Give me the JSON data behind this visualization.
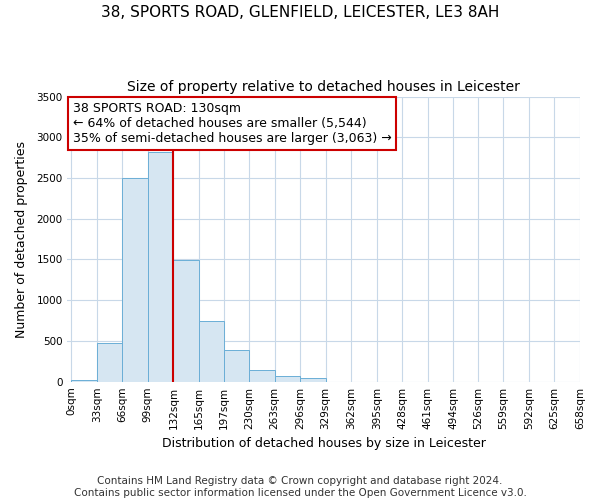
{
  "title_line1": "38, SPORTS ROAD, GLENFIELD, LEICESTER, LE3 8AH",
  "title_line2": "Size of property relative to detached houses in Leicester",
  "xlabel": "Distribution of detached houses by size in Leicester",
  "ylabel": "Number of detached properties",
  "bar_edges": [
    0,
    33,
    66,
    99,
    132,
    165,
    197,
    230,
    263,
    296,
    329,
    362,
    395,
    428,
    461,
    494,
    526,
    559,
    592,
    625,
    658
  ],
  "bar_heights": [
    20,
    480,
    2500,
    2820,
    1490,
    745,
    395,
    145,
    75,
    45,
    0,
    0,
    0,
    0,
    0,
    0,
    0,
    0,
    0,
    0
  ],
  "bar_color": "#d6e6f2",
  "bar_edgecolor": "#6baed6",
  "property_line_x": 132,
  "property_line_color": "#cc0000",
  "ylim": [
    0,
    3500
  ],
  "xlim": [
    -5,
    658
  ],
  "annotation_line1": "38 SPORTS ROAD: 130sqm",
  "annotation_line2": "← 64% of detached houses are smaller (5,544)",
  "annotation_line3": "35% of semi-detached houses are larger (3,063) →",
  "annotation_box_edgecolor": "#cc0000",
  "annotation_box_facecolor": "#ffffff",
  "footer_line1": "Contains HM Land Registry data © Crown copyright and database right 2024.",
  "footer_line2": "Contains public sector information licensed under the Open Government Licence v3.0.",
  "tick_labels": [
    "0sqm",
    "33sqm",
    "66sqm",
    "99sqm",
    "132sqm",
    "165sqm",
    "197sqm",
    "230sqm",
    "263sqm",
    "296sqm",
    "329sqm",
    "362sqm",
    "395sqm",
    "428sqm",
    "461sqm",
    "494sqm",
    "526sqm",
    "559sqm",
    "592sqm",
    "625sqm",
    "658sqm"
  ],
  "ytick_labels": [
    "0",
    "500",
    "1000",
    "1500",
    "2000",
    "2500",
    "3000",
    "3500"
  ],
  "ytick_values": [
    0,
    500,
    1000,
    1500,
    2000,
    2500,
    3000,
    3500
  ],
  "title_fontsize": 11,
  "subtitle_fontsize": 10,
  "axis_label_fontsize": 9,
  "tick_fontsize": 7.5,
  "annotation_fontsize": 9,
  "footer_fontsize": 7.5,
  "fig_background_color": "#ffffff",
  "plot_background_color": "#ffffff",
  "grid_color": "#c8d8e8"
}
